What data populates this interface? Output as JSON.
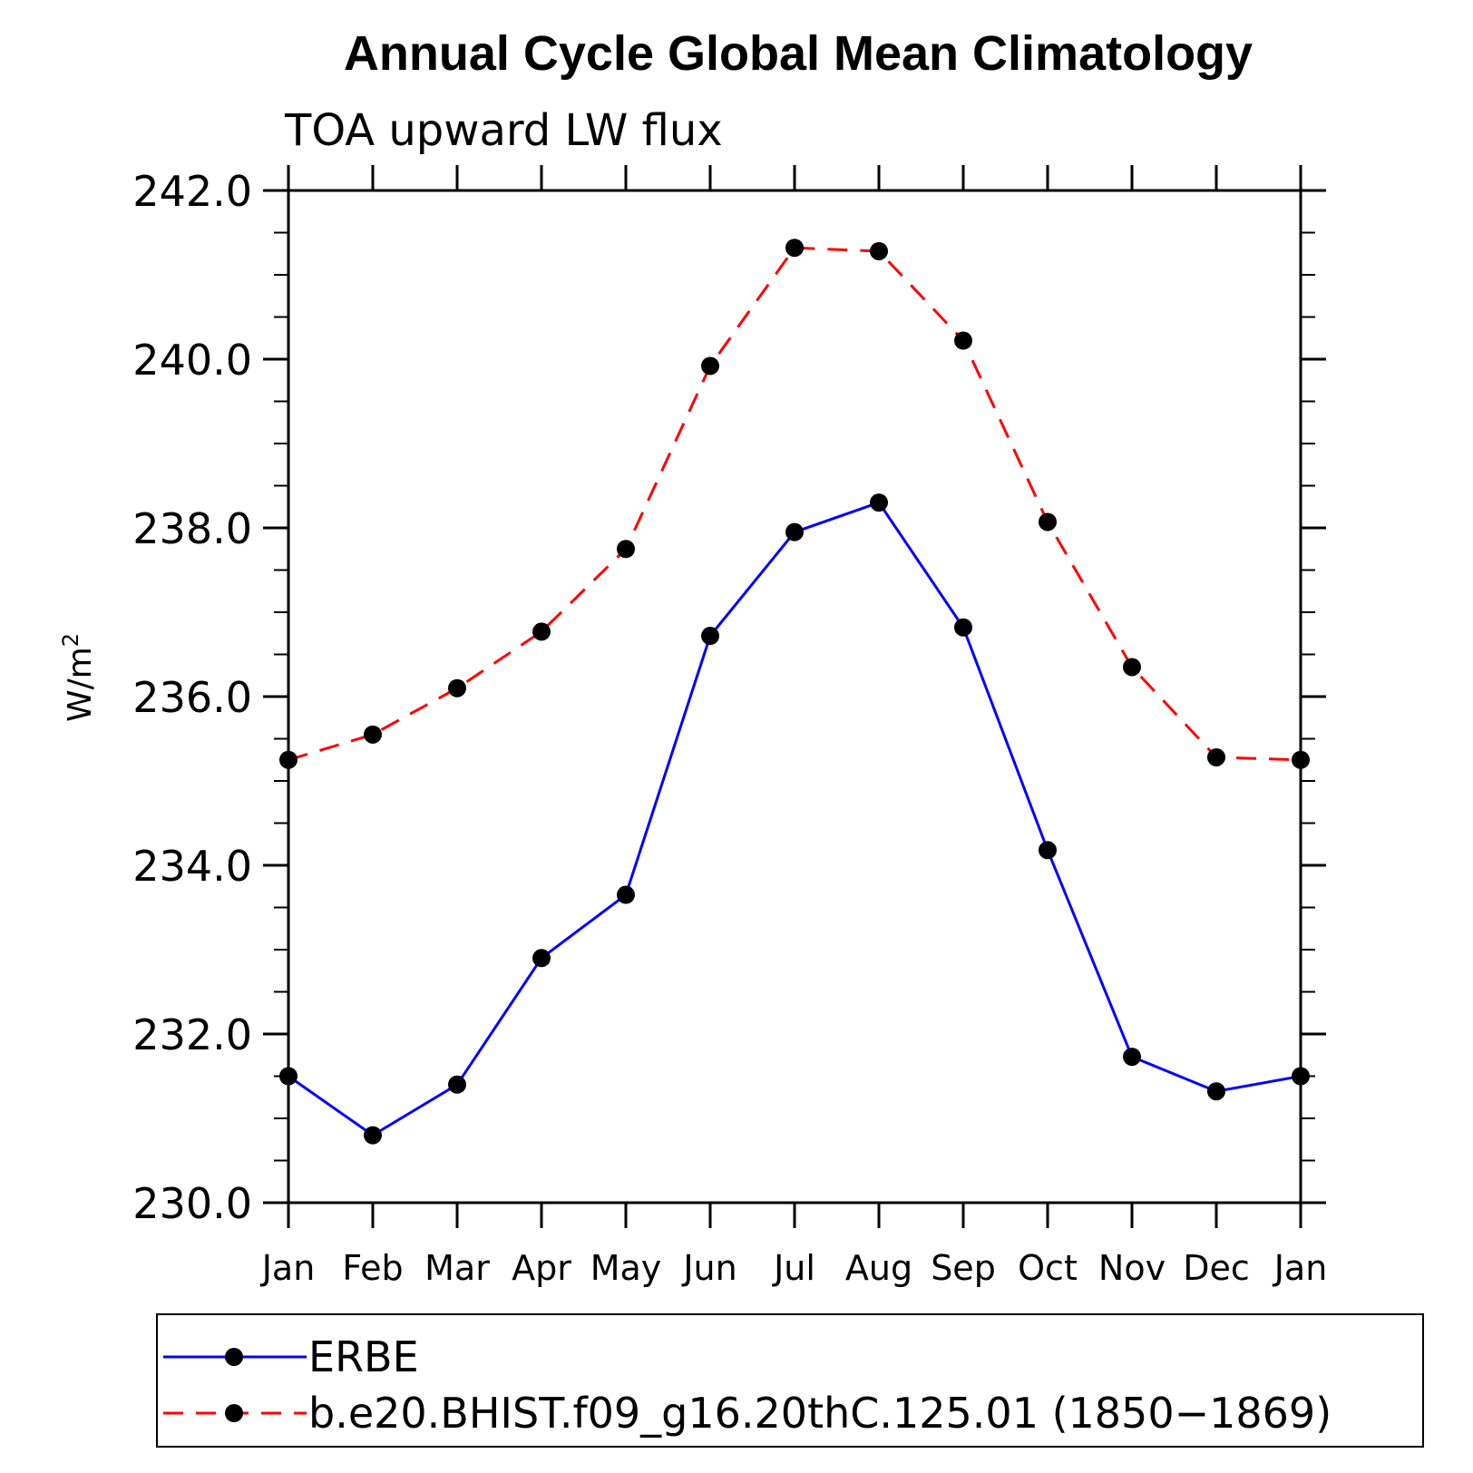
{
  "chart_data": {
    "type": "line",
    "title": "Annual Cycle Global Mean Climatology",
    "subtitle": "TOA upward LW flux",
    "xlabel": "",
    "ylabel": "W/m",
    "ylabel_superscript": "2",
    "categories": [
      "Jan",
      "Feb",
      "Mar",
      "Apr",
      "May",
      "Jun",
      "Jul",
      "Aug",
      "Sep",
      "Oct",
      "Nov",
      "Dec",
      "Jan"
    ],
    "ylim": [
      230.0,
      242.0
    ],
    "yticks_major": [
      "230.0",
      "232.0",
      "234.0",
      "236.0",
      "238.0",
      "240.0",
      "242.0"
    ],
    "grid": false,
    "legend_position": "bottom",
    "series": [
      {
        "name": "ERBE",
        "color": "#0000ff",
        "line_style": "solid",
        "marker": "filled-circle",
        "values": [
          231.5,
          230.8,
          231.4,
          232.9,
          233.65,
          236.72,
          237.95,
          238.3,
          236.82,
          234.18,
          231.73,
          231.32,
          231.5
        ]
      },
      {
        "name": "b.e20.BHIST.f09_g16.20thC.125.01 (1850−1869)",
        "color": "#ff0000",
        "line_style": "dashed",
        "marker": "filled-circle",
        "values": [
          235.25,
          235.55,
          236.1,
          236.77,
          237.75,
          239.92,
          241.32,
          241.28,
          240.22,
          238.07,
          236.35,
          235.28,
          235.25
        ]
      }
    ]
  }
}
